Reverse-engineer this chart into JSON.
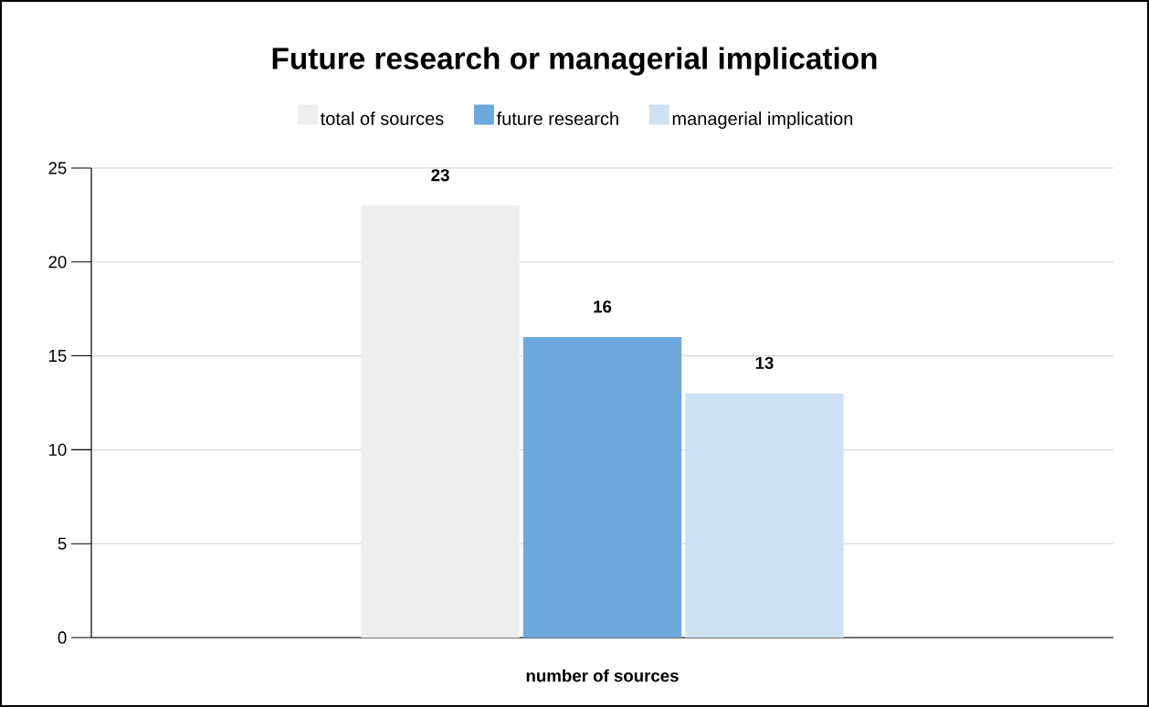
{
  "chart_data": {
    "type": "bar",
    "title": "Future research or managerial implication",
    "categories": [
      "number of sources"
    ],
    "series": [
      {
        "name": "total of sources",
        "color": "#eeeeee",
        "values": [
          23
        ]
      },
      {
        "name": "future research",
        "color": "#6fa8dc",
        "values": [
          16
        ]
      },
      {
        "name": "managerial implication",
        "color": "#cfe2f3",
        "values": [
          13
        ]
      }
    ],
    "ylim": [
      0,
      25
    ],
    "yticks": [
      0,
      5,
      10,
      15,
      20,
      25
    ],
    "grid": "y",
    "legend": "top",
    "data_labels": true
  }
}
